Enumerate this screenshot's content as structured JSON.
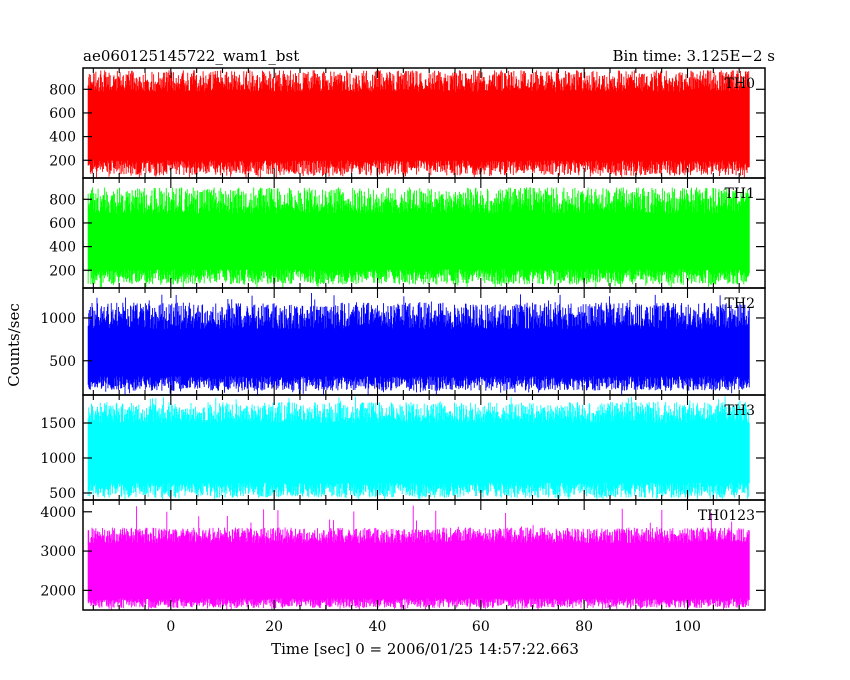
{
  "chart_data": {
    "type": "line",
    "title_left": "ae060125145722_wam1_bst",
    "title_right": "Bin time: 3.125E−2 s",
    "xlabel": "Time [sec] 0 = 2006/01/25 14:57:22.663",
    "ylabel": "Counts/sec",
    "xlim": [
      -17,
      115
    ],
    "x_start": -16,
    "x_end": 112,
    "x_ticks": [
      "0",
      "20",
      "40",
      "60",
      "80",
      "100"
    ],
    "x_tick_values": [
      0,
      20,
      40,
      60,
      80,
      100
    ],
    "grid": false,
    "panels": [
      {
        "name": "TH0",
        "color": "#ff0000",
        "ylim": [
          50,
          980
        ],
        "yticks": [
          200,
          400,
          600,
          800
        ],
        "ytick_labels": [
          "200",
          "400",
          "600",
          "800"
        ],
        "low_range": [
          70,
          200
        ],
        "high_range": [
          780,
          960
        ],
        "spike_max": 960
      },
      {
        "name": "TH1",
        "color": "#00ff00",
        "ylim": [
          50,
          980
        ],
        "yticks": [
          200,
          400,
          600,
          800
        ],
        "ytick_labels": [
          "200",
          "400",
          "600",
          "800"
        ],
        "low_range": [
          80,
          210
        ],
        "high_range": [
          680,
          900
        ],
        "spike_max": 900
      },
      {
        "name": "TH2",
        "color": "#0000ff",
        "ylim": [
          100,
          1350
        ],
        "yticks": [
          500,
          1000
        ],
        "ytick_labels": [
          "500",
          "1000"
        ],
        "low_range": [
          150,
          320
        ],
        "high_range": [
          870,
          1180
        ],
        "spike_max": 1300
      },
      {
        "name": "TH3",
        "color": "#00ffff",
        "ylim": [
          400,
          1900
        ],
        "yticks": [
          500,
          1000,
          1500
        ],
        "ytick_labels": [
          "500",
          "1000",
          "1500"
        ],
        "low_range": [
          430,
          650
        ],
        "high_range": [
          1500,
          1800
        ],
        "spike_max": 1880
      },
      {
        "name": "TH0123",
        "color": "#ff00ff",
        "ylim": [
          1500,
          4300
        ],
        "yticks": [
          2000,
          3000,
          4000
        ],
        "ytick_labels": [
          "2000",
          "3000",
          "4000"
        ],
        "low_range": [
          1550,
          1800
        ],
        "high_range": [
          3200,
          3600
        ],
        "spike_max": 4200
      }
    ]
  }
}
